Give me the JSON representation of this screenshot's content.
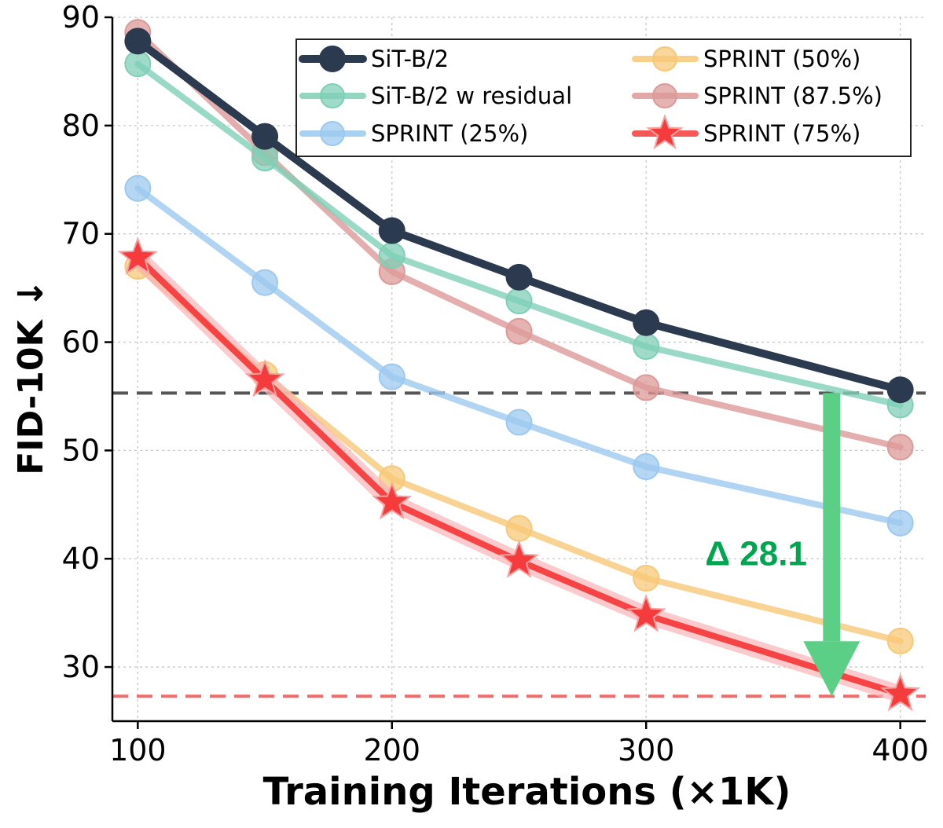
{
  "chart_data": {
    "type": "line",
    "title": "",
    "xlabel": "Training Iterations (×1K)",
    "ylabel": "FID-10K ↓",
    "x": [
      100,
      150,
      200,
      250,
      300,
      400
    ],
    "xlim": [
      90,
      410
    ],
    "ylim": [
      25,
      90
    ],
    "xticks": [
      "100",
      "200",
      "300",
      "400"
    ],
    "yticks": [
      "30",
      "40",
      "50",
      "60",
      "70",
      "80",
      "90"
    ],
    "grid": true,
    "legend_position": "top-right",
    "series": [
      {
        "name": "SiT-B/2",
        "values": [
          87.8,
          79.0,
          70.3,
          66.0,
          61.8,
          55.6
        ],
        "color": "#2b3a4e",
        "marker": "circle"
      },
      {
        "name": "SiT-B/2 w residual",
        "values": [
          85.7,
          77.0,
          68.0,
          63.8,
          59.6,
          54.2
        ],
        "color": "#7fcfb6",
        "marker": "circle"
      },
      {
        "name": "SPRINT (25%)",
        "values": [
          74.2,
          65.5,
          56.8,
          52.6,
          48.5,
          43.3
        ],
        "color": "#9cc9ef",
        "marker": "circle"
      },
      {
        "name": "SPRINT (50%)",
        "values": [
          67.0,
          57.0,
          47.4,
          42.8,
          38.2,
          32.4
        ],
        "color": "#f7c878",
        "marker": "circle"
      },
      {
        "name": "SPRINT (87.5%)",
        "values": [
          88.6,
          77.5,
          66.5,
          61.0,
          55.8,
          50.3
        ],
        "color": "#dc9a98",
        "marker": "circle"
      },
      {
        "name": "SPRINT (75%)",
        "values": [
          67.8,
          56.5,
          45.2,
          39.8,
          34.8,
          27.5
        ],
        "color": "#f53b3b",
        "marker": "star"
      }
    ],
    "reference_lines": [
      {
        "name": "sit-baseline-reference",
        "y": 55.3,
        "color": "#555555"
      },
      {
        "name": "sprint-75-reference",
        "y": 27.3,
        "color": "#f26b6b"
      }
    ],
    "annotation": {
      "text": "Δ 28.1",
      "x": 373,
      "y_from": 55.3,
      "y_to": 27.3,
      "text_x": 335,
      "text_y": 40.5,
      "color": "#00a550",
      "arrow_color": "#5ccf87"
    }
  }
}
